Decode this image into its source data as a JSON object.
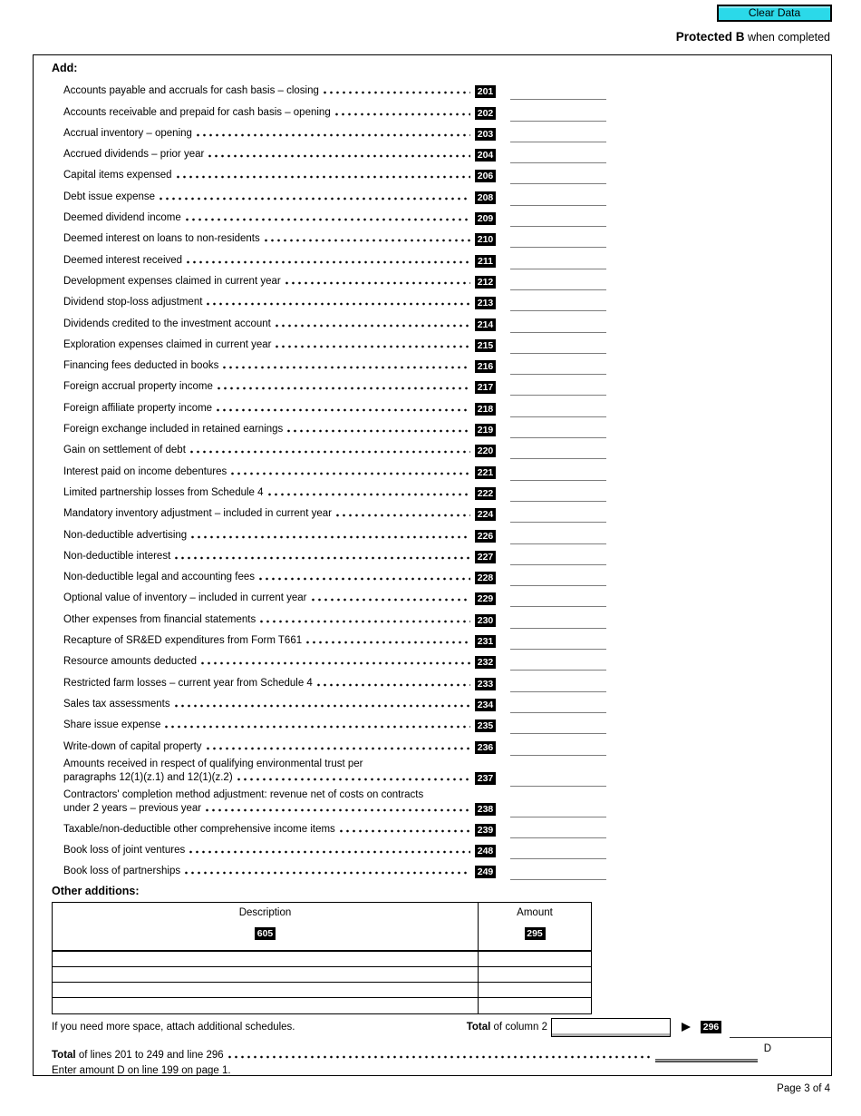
{
  "header": {
    "clear_data_label": "Clear Data",
    "protected_bold": "Protected B",
    "protected_rest": " when completed"
  },
  "form": {
    "add_heading": "Add:",
    "rows": [
      {
        "code": "201",
        "label": "Accounts payable and accruals for cash basis – closing"
      },
      {
        "code": "202",
        "label": "Accounts receivable and prepaid for cash basis – opening"
      },
      {
        "code": "203",
        "label": "Accrual inventory – opening"
      },
      {
        "code": "204",
        "label": "Accrued dividends – prior year"
      },
      {
        "code": "206",
        "label": "Capital items expensed"
      },
      {
        "code": "208",
        "label": "Debt issue expense"
      },
      {
        "code": "209",
        "label": "Deemed dividend income"
      },
      {
        "code": "210",
        "label": "Deemed interest on loans to non-residents"
      },
      {
        "code": "211",
        "label": "Deemed interest received"
      },
      {
        "code": "212",
        "label": "Development expenses claimed in current year"
      },
      {
        "code": "213",
        "label": "Dividend stop-loss adjustment"
      },
      {
        "code": "214",
        "label": "Dividends credited to the investment account"
      },
      {
        "code": "215",
        "label": "Exploration expenses claimed in current year"
      },
      {
        "code": "216",
        "label": "Financing fees deducted in books"
      },
      {
        "code": "217",
        "label": "Foreign accrual property income"
      },
      {
        "code": "218",
        "label": "Foreign affiliate property income"
      },
      {
        "code": "219",
        "label": "Foreign exchange included in retained earnings"
      },
      {
        "code": "220",
        "label": "Gain on settlement of debt"
      },
      {
        "code": "221",
        "label": "Interest paid on income debentures"
      },
      {
        "code": "222",
        "label": "Limited partnership losses from Schedule 4"
      },
      {
        "code": "224",
        "label": "Mandatory inventory adjustment – included in current year"
      },
      {
        "code": "226",
        "label": "Non-deductible advertising"
      },
      {
        "code": "227",
        "label": "Non-deductible interest"
      },
      {
        "code": "228",
        "label": "Non-deductible legal and accounting fees"
      },
      {
        "code": "229",
        "label": "Optional value of inventory – included in current year"
      },
      {
        "code": "230",
        "label": "Other expenses from financial statements"
      },
      {
        "code": "231",
        "label": "Recapture of SR&ED expenditures from Form T661"
      },
      {
        "code": "232",
        "label": "Resource amounts deducted"
      },
      {
        "code": "233",
        "label": "Restricted farm losses – current year from Schedule 4"
      },
      {
        "code": "234",
        "label": "Sales tax assessments"
      },
      {
        "code": "235",
        "label": "Share issue expense"
      },
      {
        "code": "236",
        "label": "Write-down of capital property"
      },
      {
        "code": "237",
        "label1": "Amounts received in respect of qualifying environmental trust per",
        "label2": "paragraphs 12(1)(z.1) and 12(1)(z.2)"
      },
      {
        "code": "238",
        "label1": "Contractors' completion method adjustment: revenue net of costs on contracts",
        "label2": "under 2 years – previous year"
      },
      {
        "code": "239",
        "label": "Taxable/non-deductible other comprehensive income items"
      },
      {
        "code": "248",
        "label": "Book loss of joint ventures"
      },
      {
        "code": "249",
        "label": "Book loss of partnerships"
      }
    ],
    "other_additions_heading": "Other additions:",
    "table": {
      "description_header": "Description",
      "description_code": "605",
      "amount_header": "Amount",
      "amount_code": "295",
      "empty_row_count": 4,
      "more_space_note": "If you need more space, attach additional schedules.",
      "total_bold": "Total",
      "total_rest": " of column 2",
      "total_code": "296"
    },
    "total_line": {
      "bold": "Total",
      "rest": " of lines 201 to 249 and line 296",
      "marker": "D",
      "note": "Enter amount D on line 199 on page 1."
    }
  },
  "footer": {
    "page_label": "Page 3 of 4"
  },
  "colors": {
    "badge_bg": "#000000",
    "badge_text": "#ffffff",
    "button_bg": "#2BD9E9",
    "underline": "#7d7d7d"
  }
}
